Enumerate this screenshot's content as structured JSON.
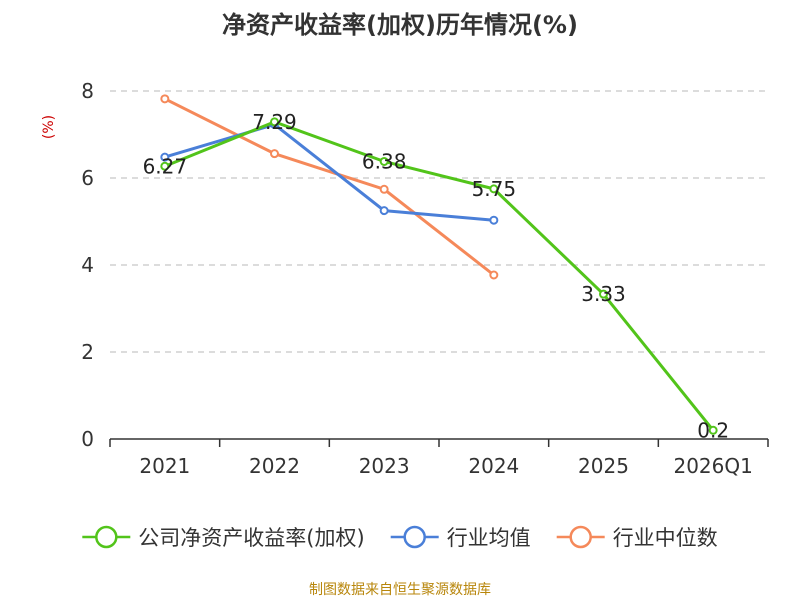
{
  "chart_data": {
    "type": "line",
    "title": "净资产收益率(加权)历年情况(%)",
    "xlabel": "",
    "ylabel": "(%)",
    "categories": [
      "2021",
      "2022",
      "2023",
      "2024",
      "2025",
      "2026Q1"
    ],
    "ylim": [
      0,
      8
    ],
    "yticks": [
      0,
      2,
      4,
      6,
      8
    ],
    "grid": true,
    "legend_position": "bottom",
    "series": [
      {
        "name": "公司净资产收益率(加权)",
        "color": "#52c41a",
        "values": [
          6.27,
          7.29,
          6.38,
          5.75,
          3.33,
          0.2
        ],
        "labels": [
          "6.27",
          "7.29",
          "6.38",
          "5.75",
          "3.33",
          "0.2"
        ]
      },
      {
        "name": "行业均值",
        "color": "#4a7fd8",
        "values": [
          6.48,
          7.23,
          5.25,
          5.03,
          null,
          null
        ]
      },
      {
        "name": "行业中位数",
        "color": "#f5895a",
        "values": [
          7.82,
          6.56,
          5.74,
          3.77,
          null,
          null
        ]
      }
    ]
  },
  "footer": {
    "source": "制图数据来自恒生聚源数据库"
  }
}
